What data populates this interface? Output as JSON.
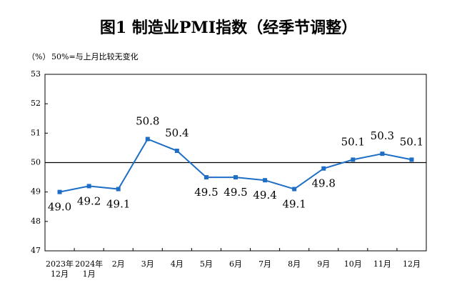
{
  "chart_data": {
    "type": "line",
    "title": "图1  制造业PMI指数（经季节调整）",
    "unit_label": "（%）",
    "note": "50%=与上月比较无变化",
    "categories": [
      "12月",
      "1月",
      "2月",
      "3月",
      "4月",
      "5月",
      "6月",
      "7月",
      "8月",
      "9月",
      "10月",
      "11月",
      "12月"
    ],
    "category_years": [
      "2023年",
      "2024年",
      null,
      null,
      null,
      null,
      null,
      null,
      null,
      null,
      null,
      null,
      null
    ],
    "values": [
      49.0,
      49.2,
      49.1,
      50.8,
      50.4,
      49.5,
      49.5,
      49.4,
      49.1,
      49.8,
      50.1,
      50.3,
      50.1
    ],
    "value_labels": [
      "49.0",
      "49.2",
      "49.1",
      "50.8",
      "50.4",
      "49.5",
      "49.5",
      "49.4",
      "49.1",
      "49.8",
      "50.1",
      "50.3",
      "50.1"
    ],
    "color": "#1f6ec6",
    "reference_line": 50,
    "ylim": [
      47,
      53
    ],
    "yticks": [
      47,
      48,
      49,
      50,
      51,
      52,
      53
    ]
  }
}
